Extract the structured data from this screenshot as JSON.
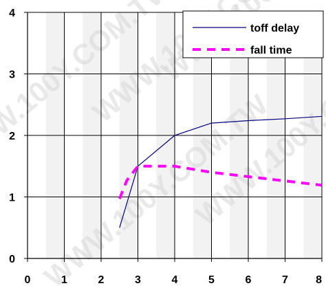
{
  "chart_data": {
    "type": "line",
    "title": "",
    "xlabel": "",
    "ylabel": "",
    "xlim": [
      0,
      8
    ],
    "ylim": [
      0,
      4
    ],
    "x_ticks": [
      0,
      1,
      2,
      3,
      4,
      5,
      6,
      7,
      8
    ],
    "y_ticks": [
      0,
      1,
      2,
      3,
      4
    ],
    "grid": true,
    "legend_position": "top-right",
    "series": [
      {
        "name": "toff delay",
        "color": "#000080",
        "style": "solid",
        "x": [
          2.5,
          3,
          4,
          5,
          6,
          7,
          8
        ],
        "y": [
          0.5,
          1.5,
          2.0,
          2.2,
          2.24,
          2.27,
          2.31
        ]
      },
      {
        "name": "fall time",
        "color": "#ff00ff",
        "style": "dashed",
        "x": [
          2.5,
          2.7,
          3,
          4,
          5,
          6,
          7,
          8
        ],
        "y": [
          0.97,
          1.27,
          1.5,
          1.5,
          1.4,
          1.33,
          1.26,
          1.19
        ]
      }
    ],
    "watermark": "WWW.100Y.COM.TW"
  }
}
